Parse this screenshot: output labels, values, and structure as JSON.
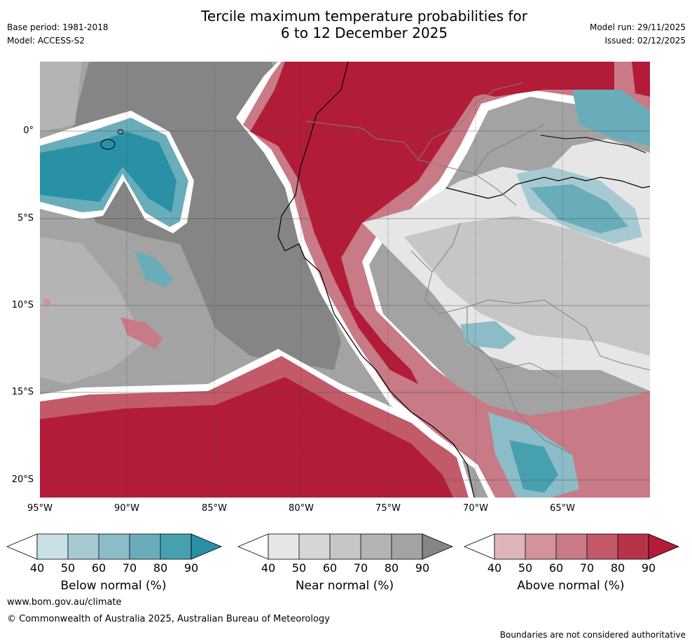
{
  "header": {
    "title_line1": "Tercile maximum temperature probabilities for",
    "title_line2": "6 to 12 December 2025",
    "base_period": "Base period: 1981-2018",
    "model": "Model: ACCESS-S2",
    "model_run": "Model run: 29/11/2025",
    "issued": "Issued: 02/12/2025"
  },
  "map": {
    "lat_labels": [
      "0°",
      "5°S",
      "10°S",
      "15°S",
      "20°S"
    ],
    "lon_labels": [
      "95°W",
      "90°W",
      "85°W",
      "80°W",
      "75°W",
      "70°W",
      "65°W"
    ],
    "lon_range": [
      -95,
      -60
    ],
    "lat_range": [
      -21,
      4
    ]
  },
  "colorbars": [
    {
      "label": "Below normal (%)",
      "ticks": [
        "40",
        "50",
        "60",
        "70",
        "80",
        "90"
      ],
      "colors": [
        "#c8e0e6",
        "#a7cad2",
        "#8bbcc8",
        "#69adba",
        "#47a0b0",
        "#2a90a5"
      ]
    },
    {
      "label": "Near normal (%)",
      "ticks": [
        "40",
        "50",
        "60",
        "70",
        "80",
        "90"
      ],
      "colors": [
        "#e6e6e6",
        "#d6d6d6",
        "#c6c6c6",
        "#b4b4b4",
        "#a3a3a3",
        "#858585"
      ]
    },
    {
      "label": "Above normal (%)",
      "ticks": [
        "40",
        "50",
        "60",
        "70",
        "80",
        "90"
      ],
      "colors": [
        "#e0b4bb",
        "#d2939c",
        "#c87a86",
        "#c25a6a",
        "#b73349",
        "#b21c38"
      ]
    }
  ],
  "footer": {
    "website": "www.bom.gov.au/climate",
    "copyright": "© Commonwealth of Australia 2025, Australian Bureau of Meteorology",
    "disclaimer": "Boundaries are not considered authoritative"
  }
}
